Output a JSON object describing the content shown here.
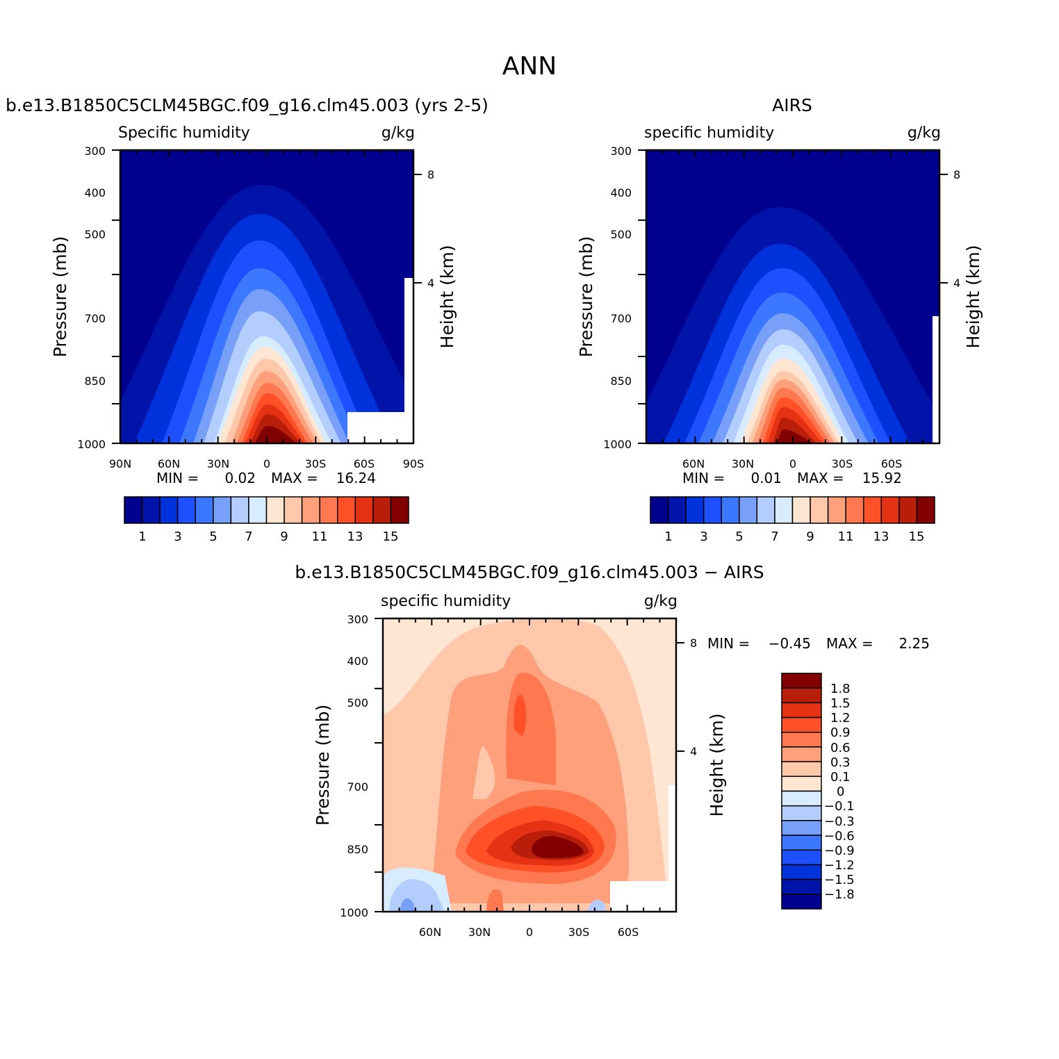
{
  "page_title": "ANN",
  "colors": {
    "blues": [
      "#00008e",
      "#0014aa",
      "#0032dc",
      "#1e50ff",
      "#3c78ff",
      "#78a0f8",
      "#b4cdff",
      "#d8ecff"
    ],
    "reds": [
      "#ffe6d2",
      "#ffc8aa",
      "#ffa07d",
      "#ff7850",
      "#ff5028",
      "#e63214",
      "#b91e0a",
      "#820000"
    ],
    "diff_reds": [
      "#ffe6d2",
      "#ffc8aa",
      "#ffa07d",
      "#ff7850",
      "#ff5028",
      "#e63214",
      "#b91e0a",
      "#820000"
    ],
    "diff_blues": [
      "#d8ecff",
      "#b4cdff",
      "#78a0f8",
      "#3c78ff",
      "#1e50ff",
      "#0032dc",
      "#0014aa",
      "#00008e"
    ]
  },
  "chart_data": [
    {
      "type": "contour",
      "title": "b.e13.B1850C5CLM45BGC.f09_g16.clm45.003 (yrs 2-5)",
      "subtitle_left": "Specific humidity",
      "subtitle_right": "g/kg",
      "ylabel": "Pressure (mb)",
      "ylabel_right": "Height (km)",
      "yticks": [
        "300",
        "400",
        "500",
        "700",
        "850",
        "1000"
      ],
      "yticks_right": [
        "8",
        "4"
      ],
      "xticks": [
        "90N",
        "60N",
        "30N",
        "0",
        "30S",
        "60S",
        "90S"
      ],
      "min_label": "MIN =",
      "min_value": "0.02",
      "max_label": "MAX =",
      "max_value": "16.24",
      "colorbar_labels": [
        "1",
        "3",
        "5",
        "7",
        "9",
        "11",
        "13",
        "15"
      ],
      "range": [
        0.02,
        16.24
      ]
    },
    {
      "type": "contour",
      "title": "AIRS",
      "subtitle_left": "specific humidity",
      "subtitle_right": "g/kg",
      "ylabel": "Pressure (mb)",
      "ylabel_right": "Height (km)",
      "yticks": [
        "300",
        "400",
        "500",
        "700",
        "850",
        "1000"
      ],
      "yticks_right": [
        "8",
        "4"
      ],
      "xticks": [
        "60N",
        "30N",
        "0",
        "30S",
        "60S"
      ],
      "min_label": "MIN =",
      "min_value": "0.01",
      "max_label": "MAX =",
      "max_value": "15.92",
      "colorbar_labels": [
        "1",
        "3",
        "5",
        "7",
        "9",
        "11",
        "13",
        "15"
      ],
      "range": [
        0.01,
        15.92
      ]
    },
    {
      "type": "contour",
      "title": "b.e13.B1850C5CLM45BGC.f09_g16.clm45.003 − AIRS",
      "subtitle_left": "specific humidity",
      "subtitle_right": "g/kg",
      "ylabel": "Pressure (mb)",
      "ylabel_right": "Height (km)",
      "yticks": [
        "300",
        "400",
        "500",
        "700",
        "850",
        "1000"
      ],
      "yticks_right": [
        "8",
        "4"
      ],
      "xticks": [
        "60N",
        "30N",
        "0",
        "30S",
        "60S"
      ],
      "min_label": "MIN =",
      "min_value": "−0.45",
      "max_label": "MAX =",
      "max_value": "2.25",
      "colorbar_labels": [
        "1.8",
        "1.5",
        "1.2",
        "0.9",
        "0.6",
        "0.3",
        "0.1",
        "0",
        "−0.1",
        "−0.3",
        "−0.6",
        "−0.9",
        "−1.2",
        "−1.5",
        "−1.8"
      ],
      "range": [
        -0.45,
        2.25
      ]
    }
  ]
}
